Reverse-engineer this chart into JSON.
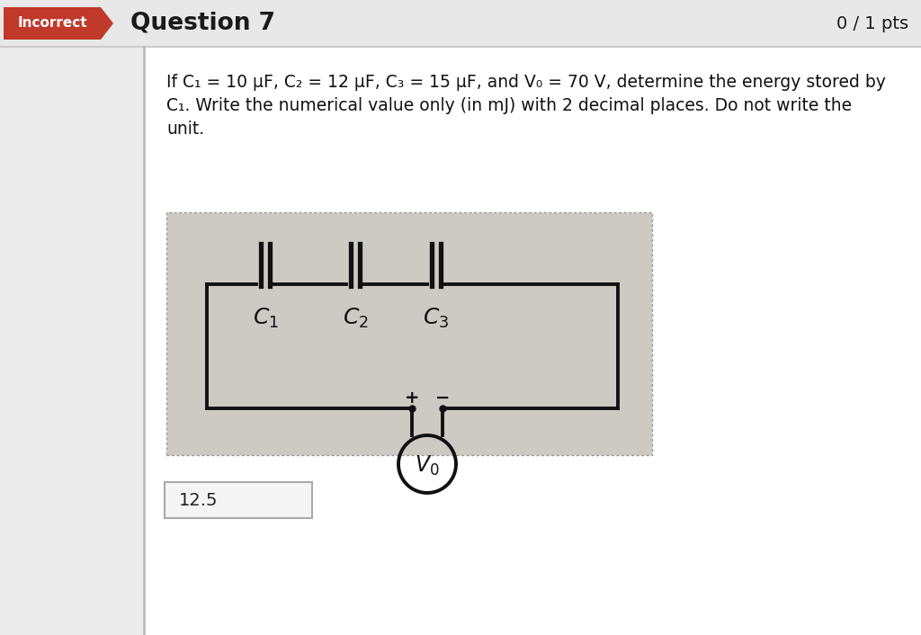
{
  "bg_color": "#ebebeb",
  "header_bg": "#e8e8e8",
  "incorrect_bg": "#c0392b",
  "incorrect_text": "Incorrect",
  "question_title": "Question 7",
  "pts_text": "0 / 1 pts",
  "question_text_line1": "If C₁ = 10 μF, C₂ = 12 μF, C₃ = 15 μF, and V₀ = 70 V, determine the energy stored by",
  "question_text_line2": "C₁. Write the numerical value only (in mJ) with 2 decimal places. Do not write the",
  "question_text_line3": "unit.",
  "answer_value": "12.5",
  "circuit_bg": "#cdc9c3",
  "white_bg": "#ffffff",
  "header_line_color": "#cccccc",
  "left_bar_color": "#c0392b",
  "divider_color": "#bbbbbb"
}
